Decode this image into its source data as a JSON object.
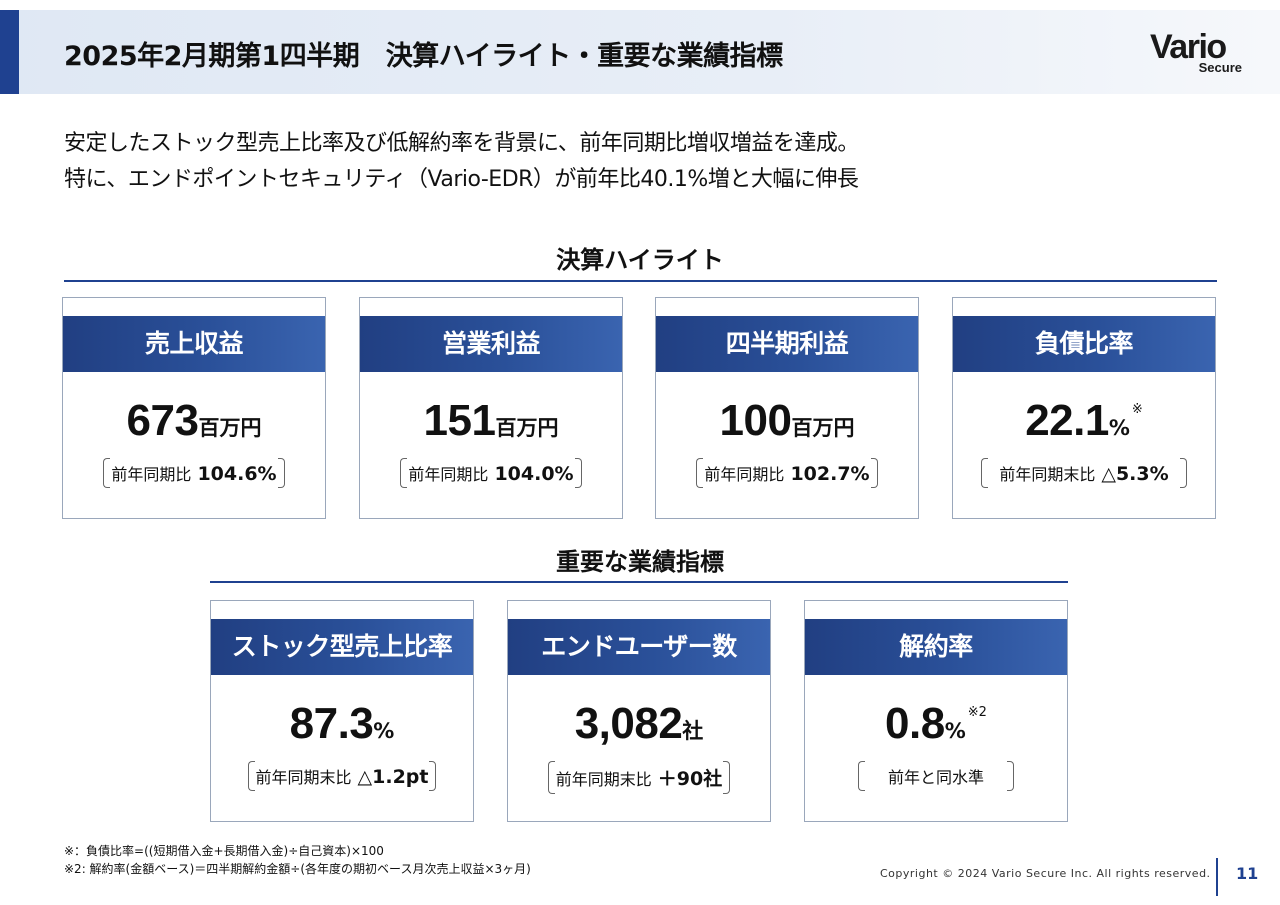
{
  "header": {
    "title": "2025年2月期第1四半期　決算ハイライト・重要な業績指標",
    "logo_main": "Vario",
    "logo_sub": "Secure"
  },
  "summary": {
    "line1": "安定したストック型売上比率及び低解約率を背景に、前年同期比増収増益を達成。",
    "line2": "特に、エンドポイントセキュリティ（Vario-EDR）が前年比40.1%増と大幅に伸長"
  },
  "highlights": {
    "heading": "決算ハイライト",
    "cards": [
      {
        "title": "売上収益",
        "value": "673",
        "unit": "百万円",
        "note": "",
        "comp_label": "前年同期比",
        "comp_value": "104.6%"
      },
      {
        "title": "営業利益",
        "value": "151",
        "unit": "百万円",
        "note": "",
        "comp_label": "前年同期比",
        "comp_value": "104.0%"
      },
      {
        "title": "四半期利益",
        "value": "100",
        "unit": "百万円",
        "note": "",
        "comp_label": "前年同期比",
        "comp_value": "102.7%"
      },
      {
        "title": "負債比率",
        "value": "22.1",
        "unit": "%",
        "note": "※",
        "comp_label": "前年同期末比",
        "comp_value": "△5.3%"
      }
    ]
  },
  "kpi": {
    "heading": "重要な業績指標",
    "cards": [
      {
        "title": "ストック型売上比率",
        "value": "87.3",
        "unit": "%",
        "note": "",
        "comp_label": "前年同期末比",
        "comp_value": "△1.2pt"
      },
      {
        "title": "エンドユーザー数",
        "value": "3,082",
        "unit": "社",
        "note": "",
        "comp_label": "前年同期末比",
        "comp_value": "＋90社"
      },
      {
        "title": "解約率",
        "value": "0.8",
        "unit": "%",
        "note": "※2",
        "comp_label": "前年と同水準",
        "comp_value": ""
      }
    ]
  },
  "footnotes": {
    "note1": "※：負債比率=((短期借入金+長期借入金)÷自己資本)×100",
    "note2": "※2: 解約率(金額ベース)＝四半期解約金額÷(各年度の期初ベース月次売上収益×3ヶ月)"
  },
  "footer": {
    "copyright": "Copyright © 2024 Vario Secure Inc. All rights reserved.",
    "page_number": "11"
  },
  "colors": {
    "accent": "#1f4190",
    "card_header": "#213f82",
    "header_band": "#dfe8f4"
  }
}
